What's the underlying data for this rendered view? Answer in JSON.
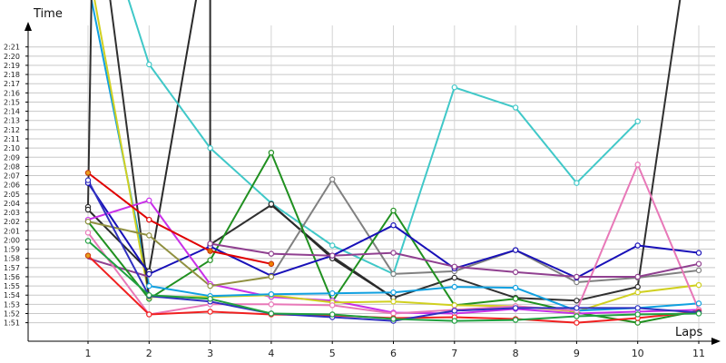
{
  "chart_data": {
    "type": "line",
    "ylabel": "Time",
    "xlabel": "Laps",
    "x": [
      1,
      2,
      3,
      4,
      5,
      6,
      7,
      8,
      9,
      10,
      11
    ],
    "xlim": [
      0.05,
      11.15
    ],
    "ylim_seconds": [
      109,
      144
    ],
    "y_tick_labels": [
      "1:51",
      "1:52",
      "1:53",
      "1:54",
      "1:55",
      "1:56",
      "1:57",
      "1:58",
      "1:59",
      "2:00",
      "2:01",
      "2:02",
      "2:03",
      "2:04",
      "2:05",
      "2:06",
      "2:07",
      "2:08",
      "2:09",
      "2:10",
      "2:11",
      "2:12",
      "2:13",
      "2:14",
      "2:15",
      "2:16",
      "2:17",
      "2:18",
      "2:19",
      "2:20",
      "2:21"
    ],
    "y_tick_seconds": [
      111,
      112,
      113,
      114,
      115,
      116,
      117,
      118,
      119,
      120,
      121,
      122,
      123,
      124,
      125,
      126,
      127,
      128,
      129,
      130,
      131,
      132,
      133,
      134,
      135,
      136,
      137,
      138,
      139,
      140,
      141
    ],
    "grid": true,
    "legend": "none",
    "series": [
      {
        "color": "#40c8c8",
        "values": [
          null,
          139.1,
          130.0,
          124.0,
          119.4,
          116.3,
          136.6,
          134.4,
          126.2,
          132.9,
          null
        ]
      },
      {
        "color": "#303030",
        "values": [
          123.6,
          null,
          119.5,
          123.8,
          118.2,
          113.7,
          115.9,
          113.7,
          113.4,
          114.9,
          null
        ]
      },
      {
        "color": "#2a2a2a",
        "values": [
          123.3,
          116.6,
          null,
          123.9,
          118.0,
          113.7,
          null,
          null,
          null,
          null,
          null
        ]
      },
      {
        "color": "#808080",
        "values": [
          null,
          null,
          null,
          116.0,
          126.6,
          116.3,
          116.6,
          118.9,
          115.4,
          115.9,
          116.7
        ]
      },
      {
        "color": "#209020",
        "values": [
          122.0,
          113.6,
          117.8,
          129.5,
          113.3,
          123.2,
          112.9,
          113.6,
          112.1,
          111.0,
          112.3
        ]
      },
      {
        "color": "#1810b8",
        "values": [
          126.2,
          116.3,
          119.3,
          116.1,
          118.3,
          121.6,
          116.9,
          118.9,
          115.9,
          119.4,
          118.6
        ]
      },
      {
        "color": "#c830e8",
        "values": [
          122.2,
          124.3,
          115.2,
          113.8,
          113.4,
          112.1,
          112.0,
          112.5,
          112.0,
          112.2,
          112.4
        ]
      },
      {
        "color": "#e00000",
        "values": [
          127.3,
          122.2,
          118.8,
          117.4,
          null,
          null,
          null,
          null,
          null,
          null,
          null
        ]
      },
      {
        "color": "#d0d020",
        "values": [
          null,
          113.8,
          113.8,
          114.0,
          113.2,
          113.3,
          112.9,
          112.8,
          112.2,
          114.3,
          115.1
        ]
      },
      {
        "color": "#10a0e0",
        "values": [
          null,
          115.0,
          113.9,
          114.1,
          114.2,
          114.3,
          114.9,
          114.8,
          112.3,
          112.6,
          113.1
        ]
      },
      {
        "color": "#e878b8",
        "values": [
          120.8,
          111.9,
          113.0,
          113.0,
          112.9,
          112.0,
          112.4,
          112.8,
          112.3,
          128.2,
          112.4
        ]
      },
      {
        "color": "#904090",
        "values": [
          null,
          null,
          119.6,
          118.5,
          118.3,
          118.6,
          117.1,
          116.5,
          116.0,
          116.0,
          117.4
        ]
      },
      {
        "color": "#909040",
        "values": [
          122.0,
          120.5,
          115.0,
          116.0,
          null,
          null,
          null,
          null,
          null,
          null,
          null
        ]
      },
      {
        "color": "#f02020",
        "values": [
          118.3,
          111.9,
          112.2,
          111.9,
          111.8,
          111.5,
          111.6,
          111.4,
          111.0,
          111.5,
          112.2
        ]
      },
      {
        "color": "#3030c0",
        "values": [
          126.5,
          113.9,
          113.3,
          112.0,
          111.6,
          111.2,
          112.3,
          112.6,
          112.6,
          112.6,
          112.1
        ]
      },
      {
        "color": "#20a040",
        "values": [
          119.9,
          114.0,
          113.6,
          112.0,
          111.9,
          111.4,
          111.2,
          111.3,
          111.7,
          111.9,
          112.0
        ]
      }
    ],
    "offchart_segments": [
      {
        "color": "#40c8c8",
        "from": [
          1,
          160
        ],
        "to": [
          2,
          139.1
        ]
      },
      {
        "color": "#10a0e0",
        "from": [
          1,
          148
        ],
        "to": [
          2,
          115.0
        ]
      },
      {
        "color": "#d0d020",
        "from": [
          1,
          150
        ],
        "to": [
          2,
          113.8
        ]
      },
      {
        "color": "#303030",
        "from": [
          1,
          123.6
        ],
        "to": [
          1.09,
          160
        ]
      },
      {
        "color": "#303030",
        "from": [
          1.09,
          160
        ],
        "to": [
          2,
          113.7
        ]
      },
      {
        "color": "#2a2a2a",
        "from": [
          2,
          116.6
        ],
        "to": [
          3,
          155
        ]
      },
      {
        "color": "#2a2a2a",
        "from": [
          3,
          155
        ],
        "to": [
          3,
          119.5
        ]
      },
      {
        "color": "#303030",
        "from": [
          10,
          114.9
        ],
        "to": [
          11,
          160
        ]
      },
      {
        "color": "#904090",
        "from": [
          1,
          118.0
        ],
        "to": [
          2,
          116.0
        ]
      }
    ]
  }
}
